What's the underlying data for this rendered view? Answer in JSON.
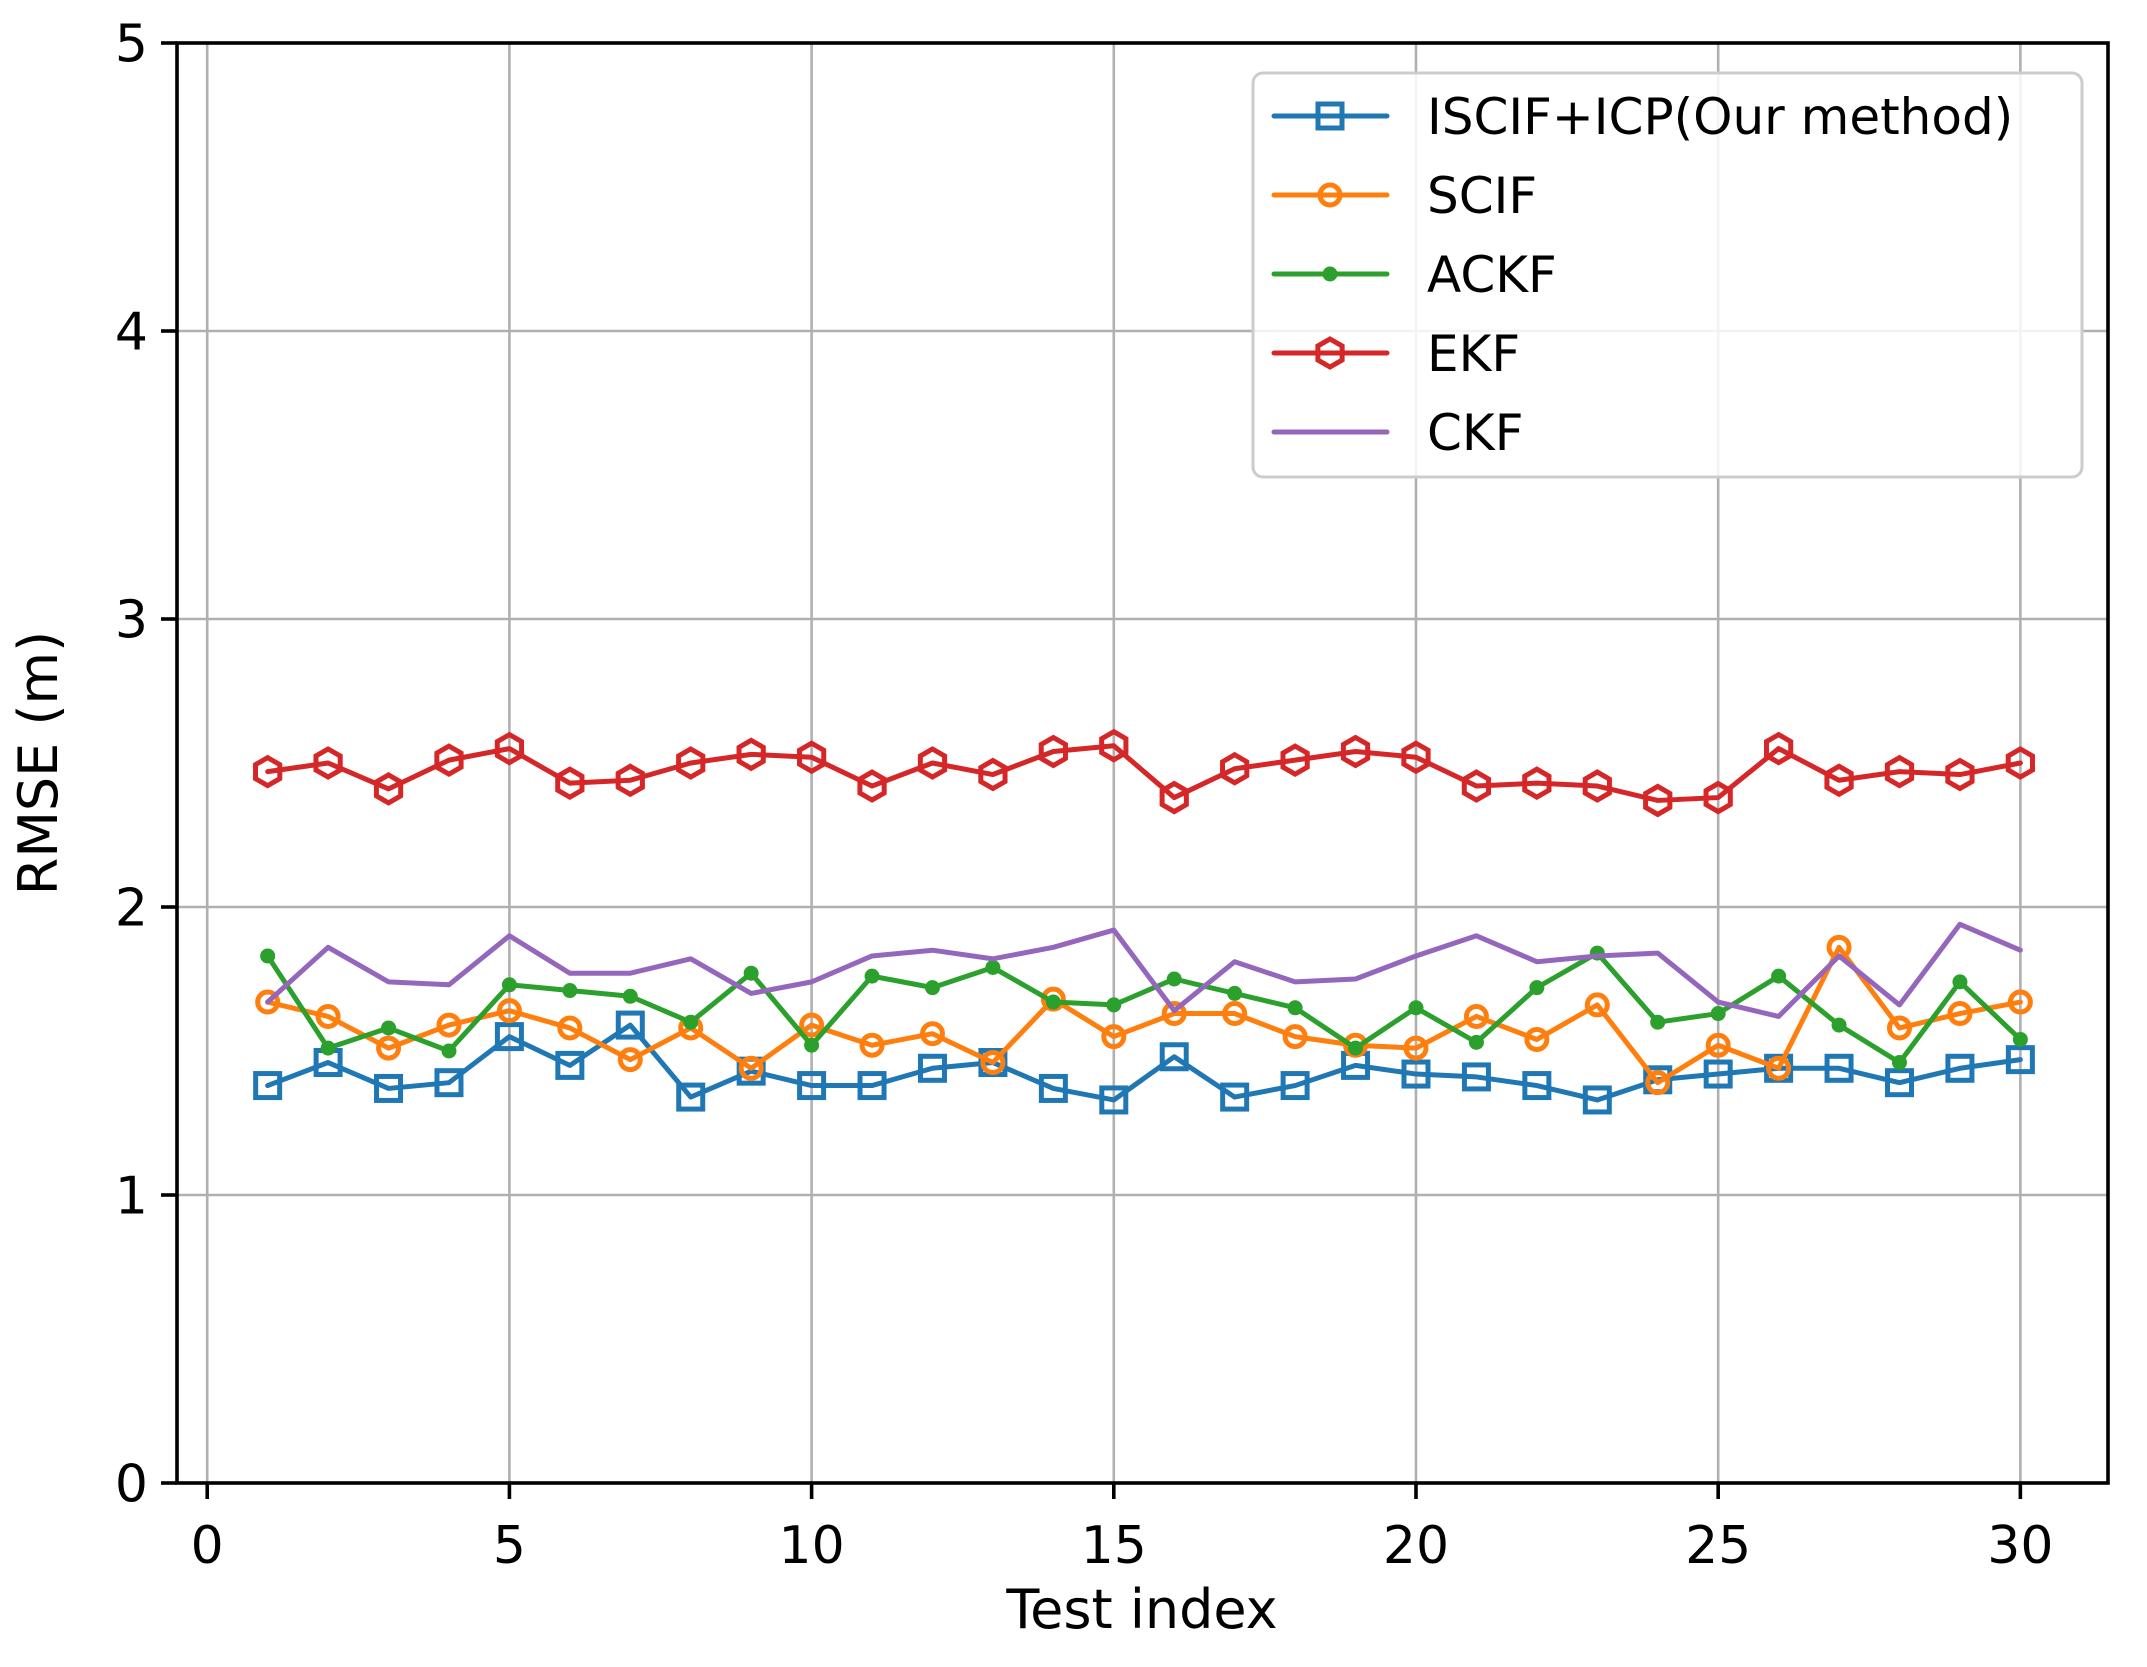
{
  "figure": {
    "background_color": "#ffffff",
    "plot_border_color": "#000000",
    "grid_color": "#b0b0b0",
    "text_color": "#000000",
    "legend_border_color": "#cccccc"
  },
  "chart_data": {
    "type": "line",
    "title": "",
    "xlabel": "Test index",
    "ylabel": "RMSE (m)",
    "xlim": [
      -0.5,
      31.45
    ],
    "ylim": [
      0,
      5
    ],
    "xticks": [
      0,
      5,
      10,
      15,
      20,
      25,
      30
    ],
    "yticks": [
      0,
      1,
      2,
      3,
      4,
      5
    ],
    "grid": true,
    "legend_position": "upper right",
    "x": [
      1,
      2,
      3,
      4,
      5,
      6,
      7,
      8,
      9,
      10,
      11,
      12,
      13,
      14,
      15,
      16,
      17,
      18,
      19,
      20,
      21,
      22,
      23,
      24,
      25,
      26,
      27,
      28,
      29,
      30
    ],
    "series": [
      {
        "name": "ISCIF+ICP(Our method)",
        "color": "#1f77b4",
        "marker": "square",
        "values": [
          1.38,
          1.46,
          1.37,
          1.39,
          1.55,
          1.45,
          1.59,
          1.34,
          1.43,
          1.38,
          1.38,
          1.44,
          1.46,
          1.37,
          1.33,
          1.48,
          1.34,
          1.38,
          1.45,
          1.42,
          1.41,
          1.38,
          1.33,
          1.4,
          1.42,
          1.44,
          1.44,
          1.39,
          1.44,
          1.47
        ]
      },
      {
        "name": "SCIF",
        "color": "#ff7f0e",
        "marker": "circle",
        "values": [
          1.67,
          1.62,
          1.51,
          1.59,
          1.64,
          1.58,
          1.47,
          1.58,
          1.44,
          1.59,
          1.52,
          1.56,
          1.46,
          1.68,
          1.55,
          1.63,
          1.63,
          1.55,
          1.52,
          1.51,
          1.62,
          1.54,
          1.66,
          1.39,
          1.52,
          1.44,
          1.86,
          1.58,
          1.63,
          1.67
        ]
      },
      {
        "name": "ACKF",
        "color": "#2ca02c",
        "marker": "dot",
        "values": [
          1.83,
          1.51,
          1.58,
          1.5,
          1.73,
          1.71,
          1.69,
          1.6,
          1.77,
          1.52,
          1.76,
          1.72,
          1.79,
          1.67,
          1.66,
          1.75,
          1.7,
          1.65,
          1.51,
          1.65,
          1.53,
          1.72,
          1.84,
          1.6,
          1.63,
          1.76,
          1.59,
          1.46,
          1.74,
          1.54
        ]
      },
      {
        "name": "EKF",
        "color": "#d62728",
        "marker": "hexagon",
        "values": [
          2.47,
          2.5,
          2.41,
          2.51,
          2.55,
          2.43,
          2.44,
          2.5,
          2.53,
          2.52,
          2.42,
          2.5,
          2.46,
          2.54,
          2.56,
          2.38,
          2.48,
          2.51,
          2.54,
          2.52,
          2.42,
          2.43,
          2.42,
          2.37,
          2.38,
          2.55,
          2.44,
          2.47,
          2.46,
          2.5
        ]
      },
      {
        "name": "CKF",
        "color": "#9467bd",
        "marker": "none",
        "values": [
          1.67,
          1.86,
          1.74,
          1.73,
          1.9,
          1.77,
          1.77,
          1.82,
          1.7,
          1.74,
          1.83,
          1.85,
          1.82,
          1.86,
          1.92,
          1.64,
          1.81,
          1.74,
          1.75,
          1.83,
          1.9,
          1.81,
          1.83,
          1.84,
          1.67,
          1.62,
          1.83,
          1.66,
          1.94,
          1.85
        ]
      }
    ]
  }
}
